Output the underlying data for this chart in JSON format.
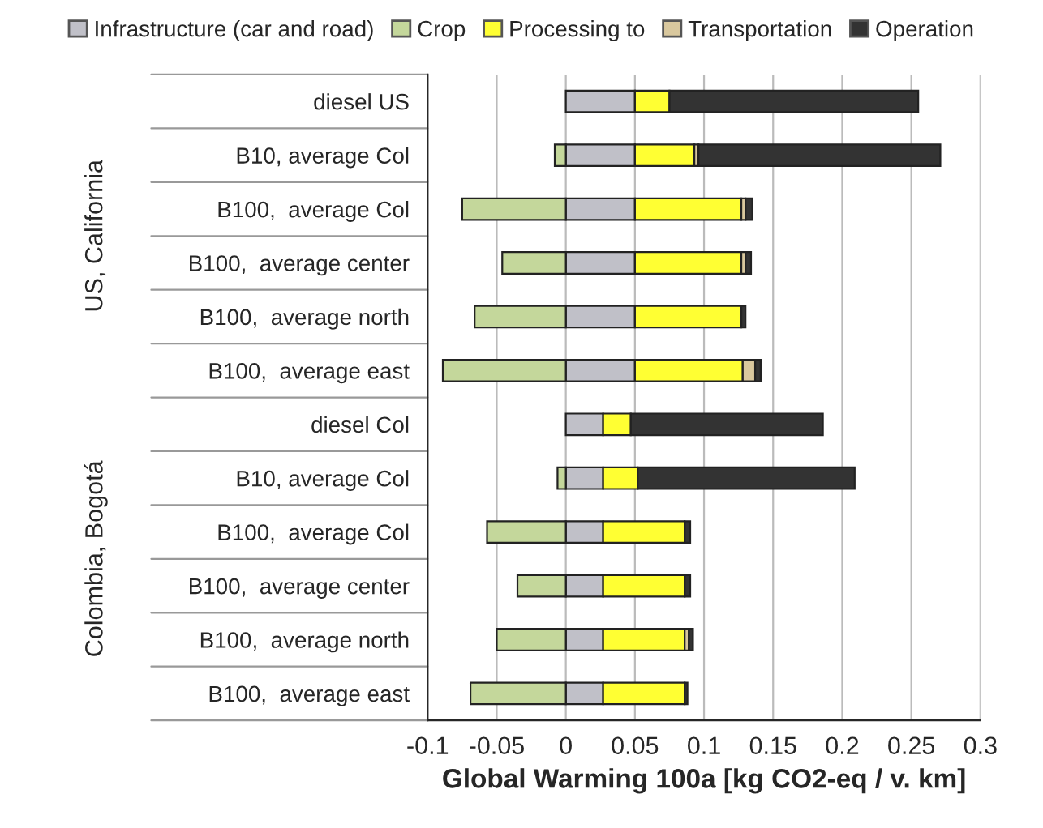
{
  "chart_data": {
    "type": "bar",
    "orientation": "horizontal",
    "stacked": true,
    "xlabel": "Global Warming 100a [kg CO2-eq / v. km]",
    "categories": [
      "diesel US",
      "B10, average Col",
      "B100,  average Col",
      "B100,  average center",
      "B100,  average north",
      "B100,  average east",
      "diesel Col",
      "B10, average Col",
      "B100,  average Col",
      "B100,  average center",
      "B100,  average north",
      "B100,  average east"
    ],
    "series": [
      {
        "name": "Infrastructure (car and road)",
        "color": "#c0c0c8",
        "values": [
          0.05,
          0.05,
          0.05,
          0.05,
          0.05,
          0.05,
          0.027,
          0.027,
          0.027,
          0.027,
          0.027,
          0.027
        ]
      },
      {
        "name": "Crop",
        "color": "#c4d79b",
        "values": [
          null,
          -0.008,
          -0.075,
          -0.046,
          -0.066,
          -0.089,
          null,
          -0.006,
          -0.057,
          -0.035,
          -0.05,
          -0.069
        ]
      },
      {
        "name": "Processing to",
        "color": "#ffff33",
        "values": [
          0.025,
          0.043,
          0.077,
          0.077,
          0.077,
          0.078,
          0.02,
          0.025,
          0.059,
          0.059,
          0.059,
          0.059
        ]
      },
      {
        "name": "Transportation",
        "color": "#d9c89e",
        "values": [
          null,
          0.003,
          0.003,
          0.003,
          null,
          0.009,
          null,
          null,
          null,
          null,
          0.003,
          null
        ]
      },
      {
        "name": "Operation",
        "color": "#333333",
        "values": [
          0.18,
          0.175,
          0.005,
          0.004,
          0.003,
          0.004,
          0.139,
          0.157,
          0.004,
          0.004,
          0.003,
          0.002
        ]
      }
    ],
    "xlim": [
      -0.1,
      0.3
    ],
    "xticks": [
      -0.1,
      -0.05,
      0,
      0.05,
      0.1,
      0.15,
      0.2,
      0.25,
      0.3
    ],
    "grid": "x",
    "legend": "top",
    "annotations": [
      "US, California",
      "Colombia, Bogotá"
    ]
  }
}
